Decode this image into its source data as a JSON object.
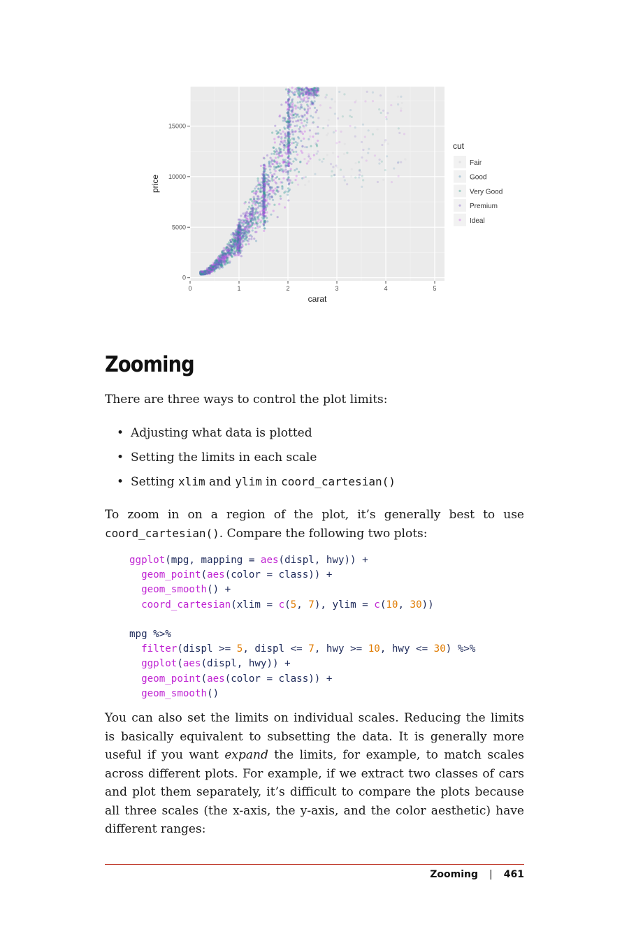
{
  "chart_data": {
    "type": "scatter",
    "title": "",
    "xlabel": "carat",
    "ylabel": "price",
    "x_ticks": [
      "0",
      "1",
      "2",
      "3",
      "4",
      "5"
    ],
    "y_ticks": [
      "0",
      "5000",
      "10000",
      "15000"
    ],
    "xlim": [
      0,
      5.2
    ],
    "ylim": [
      -300,
      18900
    ],
    "grid": true,
    "legend_title": "cut",
    "legend_position": "right",
    "legend_items": [
      "Fair",
      "Good",
      "Very Good",
      "Premium",
      "Ideal"
    ],
    "colors": [
      "#c7c7cf",
      "#4c8fb5",
      "#2c9c8a",
      "#7a56c8",
      "#c659e8"
    ]
  },
  "section": {
    "title": "Zooming",
    "intro": "There are three ways to control the plot limits:",
    "bullets": {
      "b1": "Adjusting what data is plotted",
      "b2": "Setting the limits in each scale",
      "b3_pre": "Setting",
      "b3_code1": "xlim",
      "b3_mid": "and",
      "b3_code2": "ylim",
      "b3_in": "in",
      "b3_code3": "coord_cartesian()"
    },
    "p2_line1": "To zoom in on a region of the plot, it’s generally best to use",
    "p2_code": "coord_cartesian()",
    "p2_rest": ". Compare the following two plots:",
    "p3_lines": [
      "You can also set the limits on individual scales. Reducing the limits",
      "is basically equivalent to subsetting the data. It is generally more",
      "useful if you want ",
      "expand",
      " the limits, for example, to match scales",
      "across different plots. For example, if we extract two classes of cars",
      "and plot them separately, it’s difficult to compare the plots because",
      "all three scales (the x-axis, the y-axis, and the color aesthetic) have",
      "different ranges:"
    ]
  },
  "code_block": {
    "l1_fn": "ggplot",
    "l1_a": "(mpg, mapping = ",
    "l1_fn2": "aes",
    "l1_b": "(displ, hwy)) +",
    "l2_fn": "geom_point",
    "l2_a": "(",
    "l2_fn2": "aes",
    "l2_b": "(color = class)) +",
    "l3_fn": "geom_smooth",
    "l3_b": "() +",
    "l4_fn": "coord_cartesian",
    "l4_a": "(xlim = ",
    "l4_c": "c",
    "l4_p": "(",
    "l4_n1": "5",
    "l4_cm": ", ",
    "l4_n2": "7",
    "l4_b": "), ylim = ",
    "l4_c2": "c",
    "l4_p2": "(",
    "l4_n3": "10",
    "l4_cm2": ", ",
    "l4_n4": "30",
    "l4_e": "))",
    "l6": "mpg %>%",
    "l7_fn": "filter",
    "l7_a": "(displ >= ",
    "l7_n1": "5",
    "l7_b": ", displ <= ",
    "l7_n2": "7",
    "l7_c": ", hwy >= ",
    "l7_n3": "10",
    "l7_d": ", hwy <= ",
    "l7_n4": "30",
    "l7_e": ") %>%",
    "l8_fn": "ggplot",
    "l8_a": "(",
    "l8_fn2": "aes",
    "l8_b": "(displ, hwy)) +",
    "l9_fn": "geom_point",
    "l9_a": "(",
    "l9_fn2": "aes",
    "l9_b": "(color = class)) +",
    "l10_fn": "geom_smooth",
    "l10_b": "()"
  },
  "footer": {
    "section": "Zooming",
    "separator": "|",
    "page": "461"
  }
}
